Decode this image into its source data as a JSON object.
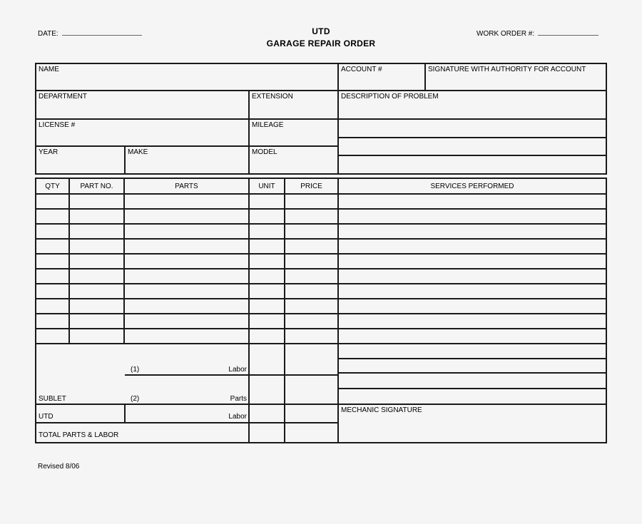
{
  "header": {
    "date_label": "DATE:",
    "title": "UTD",
    "subtitle": "GARAGE REPAIR ORDER",
    "work_order_label": "WORK ORDER #:"
  },
  "info": {
    "name_label": "NAME",
    "account_label": "ACCOUNT #",
    "signature_label": "SIGNATURE WITH AUTHORITY FOR ACCOUNT",
    "department_label": "DEPARTMENT",
    "extension_label": "EXTENSION",
    "description_label": "DESCRIPTION OF PROBLEM",
    "license_label": "LICENSE #",
    "mileage_label": "MILEAGE",
    "year_label": "YEAR",
    "make_label": "MAKE",
    "model_label": "MODEL"
  },
  "parts_table": {
    "columns": [
      "QTY",
      "PART NO.",
      "PARTS",
      "UNIT",
      "PRICE",
      "SERVICES PERFORMED"
    ],
    "empty_row_count": 10,
    "extra_service_row_count": 4
  },
  "totals": {
    "labor1_num": "(1)",
    "labor1_label": "Labor",
    "sublet_label": "SUBLET",
    "parts2_num": "(2)",
    "parts2_label": "Parts",
    "utd_label": "UTD",
    "labor3_label": "Labor",
    "total_label": "TOTAL PARTS & LABOR",
    "mechanic_label": "MECHANIC SIGNATURE"
  },
  "footer": {
    "revised": "Revised 8/06"
  },
  "colors": {
    "background": "#f5f5f5",
    "line": "#1a1a1a",
    "text": "#000000"
  }
}
